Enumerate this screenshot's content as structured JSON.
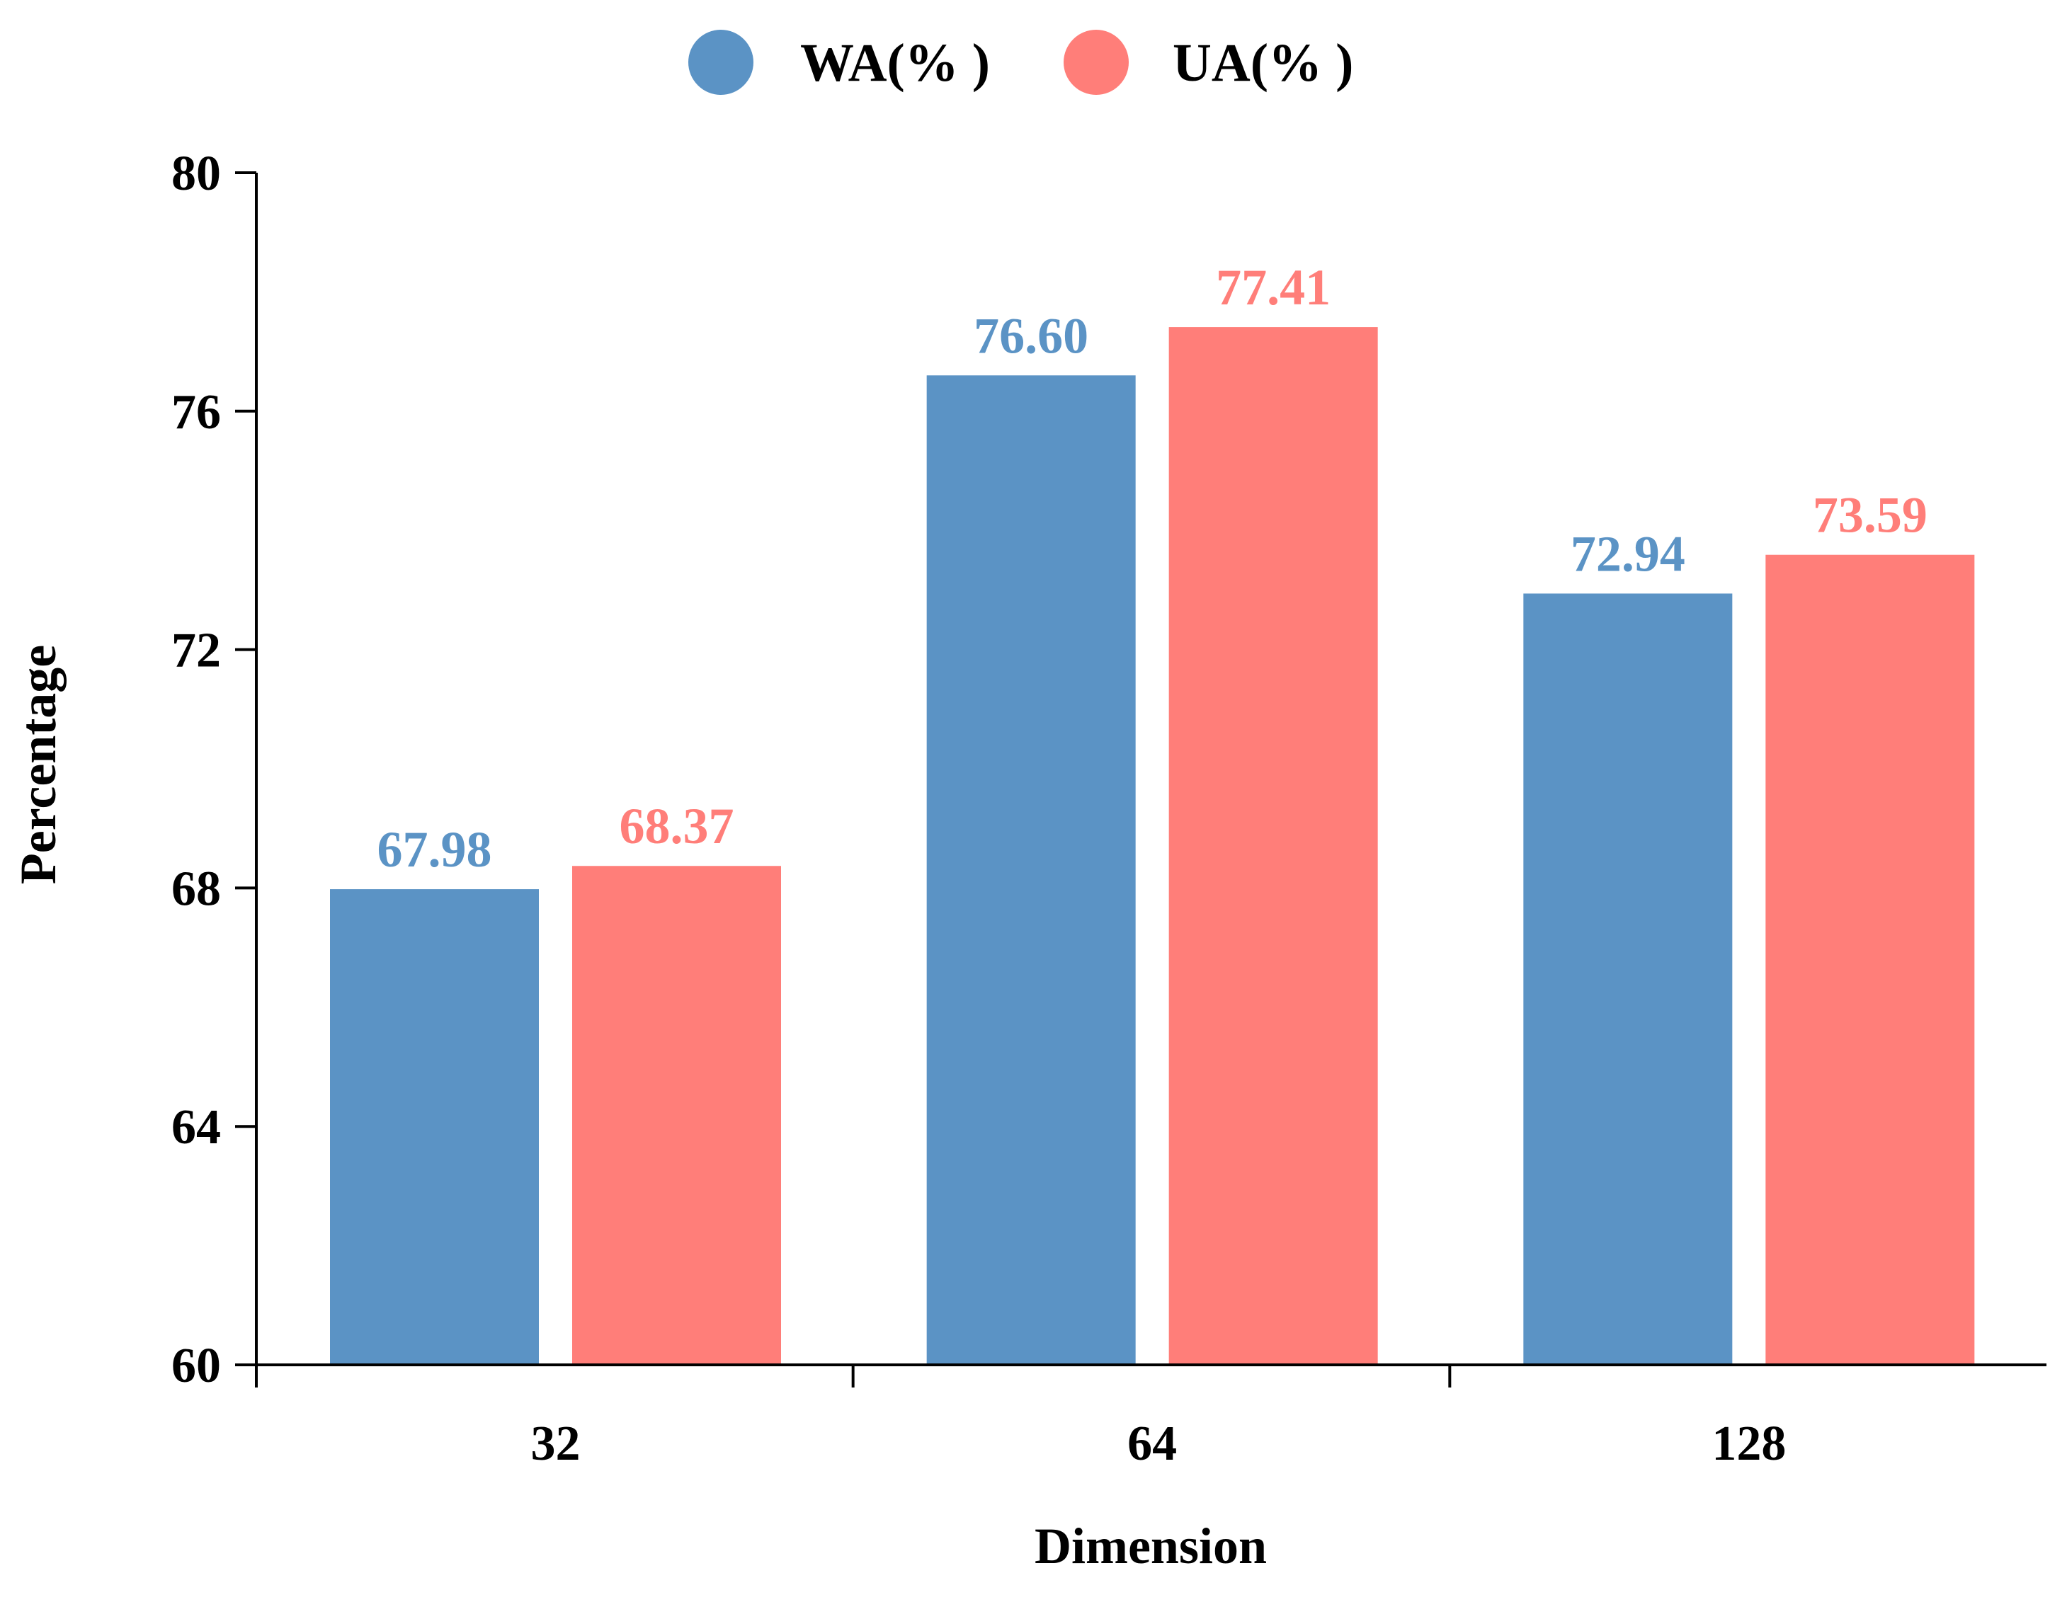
{
  "chart_data": {
    "type": "bar",
    "title": "",
    "xlabel": "Dimension",
    "ylabel": "Percentage",
    "categories": [
      "32",
      "64",
      "128"
    ],
    "ylim": [
      60,
      80
    ],
    "yticks": [
      "60",
      "64",
      "68",
      "72",
      "76",
      "80"
    ],
    "grid": false,
    "legend_position": "top-center",
    "series": [
      {
        "name": "WA(% )",
        "color": "#5B93C5",
        "values": [
          67.98,
          76.6,
          72.94
        ],
        "labels": [
          "67.98",
          "76.60",
          "72.94"
        ]
      },
      {
        "name": "UA(% )",
        "color": "#FF7E79",
        "values": [
          68.37,
          77.41,
          73.59
        ],
        "labels": [
          "68.37",
          "77.41",
          "73.59"
        ]
      }
    ]
  }
}
